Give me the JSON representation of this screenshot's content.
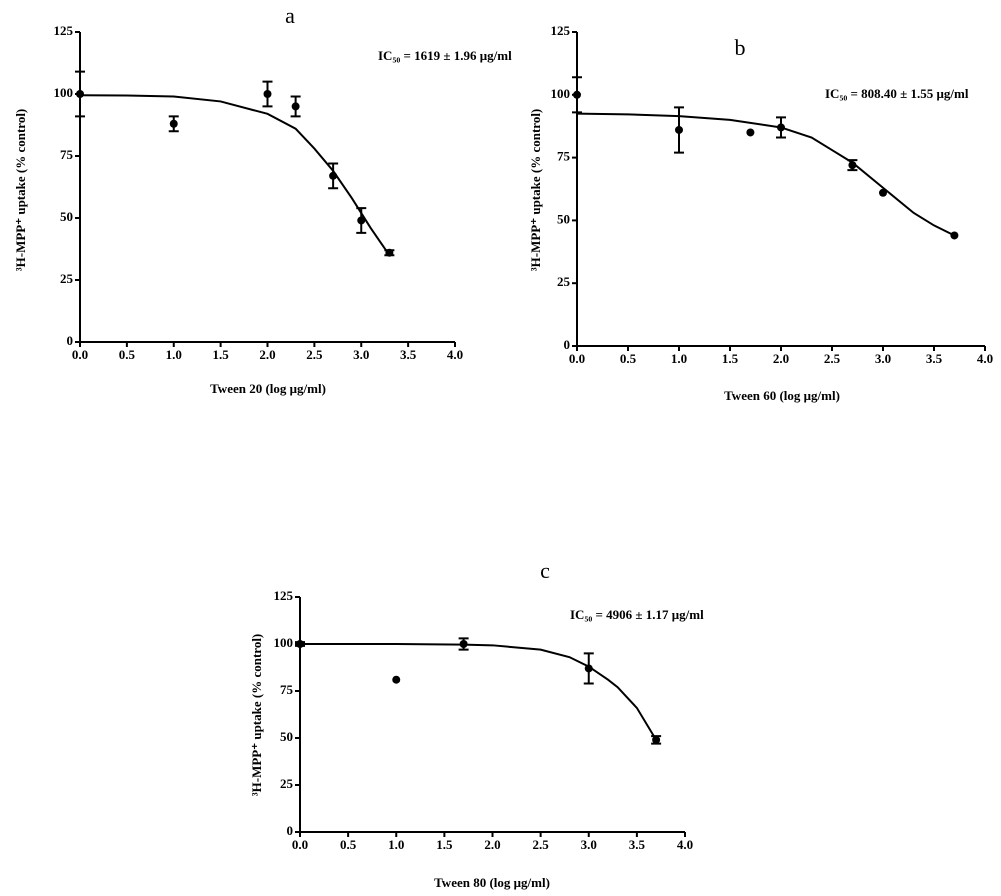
{
  "chart_data": [
    {
      "type": "scatter",
      "label": "a",
      "annotation": "IC₅₀ = 1619 ± 1.96 μg/ml",
      "xlabel": "Tween 20 (log μg/ml)",
      "ylabel": "³H-MPP⁺ uptake (% control)",
      "x": [
        0,
        1,
        2,
        2.3,
        2.7,
        3,
        3.3
      ],
      "values": [
        100,
        88,
        100,
        95,
        67,
        49,
        36
      ],
      "errors": [
        9,
        3,
        5,
        4,
        5,
        5,
        1
      ],
      "fit_x": [
        0,
        0.5,
        1,
        1.5,
        2,
        2.3,
        2.5,
        2.7,
        2.9,
        3,
        3.1,
        3.3
      ],
      "fit_y": [
        99.5,
        99.4,
        99,
        97,
        92,
        86,
        78,
        69,
        58,
        52,
        46,
        35
      ],
      "xlim": [
        0,
        4
      ],
      "ylim": [
        0,
        125
      ],
      "xticks": [
        {
          "value": 0,
          "label": "0.0"
        },
        0.5,
        {
          "value": 1,
          "label": "1.0"
        },
        1.5,
        {
          "value": 2,
          "label": "2.0"
        },
        2.5,
        {
          "value": 3,
          "label": "3.0"
        },
        3.5,
        {
          "value": 4,
          "label": "4.0"
        }
      ],
      "yticks": [
        0,
        25,
        50,
        75,
        100,
        125
      ],
      "color": "#000000"
    },
    {
      "type": "scatter",
      "label": "b",
      "annotation": "IC₅₀ = 808.40 ± 1.55 μg/ml",
      "xlabel": "Tween 60 (log μg/ml)",
      "ylabel": "³H-MPP⁺ uptake (% control)",
      "x": [
        0,
        1,
        1.7,
        2,
        2.7,
        3,
        3.7
      ],
      "values": [
        100,
        86,
        85,
        87,
        72,
        61,
        44
      ],
      "errors": [
        7,
        9,
        0,
        4,
        2,
        0,
        0
      ],
      "fit_x": [
        0,
        0.5,
        1,
        1.5,
        2,
        2.3,
        2.5,
        2.7,
        3,
        3.3,
        3.5,
        3.7
      ],
      "fit_y": [
        92.5,
        92.2,
        91.5,
        90,
        87,
        83,
        78,
        73,
        63,
        53,
        48,
        44
      ],
      "xlim": [
        0,
        4
      ],
      "ylim": [
        0,
        125
      ],
      "xticks": [
        {
          "value": 0,
          "label": "0.0"
        },
        0.5,
        {
          "value": 1,
          "label": "1.0"
        },
        1.5,
        {
          "value": 2,
          "label": "2.0"
        },
        2.5,
        {
          "value": 3,
          "label": "3.0"
        },
        3.5,
        {
          "value": 4,
          "label": "4.0"
        }
      ],
      "yticks": [
        0,
        25,
        50,
        75,
        100,
        125
      ],
      "color": "#000000"
    },
    {
      "type": "scatter",
      "label": "c",
      "annotation": "IC₅₀ = 4906 ± 1.17 μg/ml",
      "xlabel": "Tween 80 (log μg/ml)",
      "ylabel": "³H-MPP⁺ uptake (% control)",
      "x": [
        0,
        1,
        1.7,
        3,
        3.7
      ],
      "values": [
        100,
        81,
        100,
        87,
        49
      ],
      "errors": [
        1,
        0,
        3,
        8,
        2
      ],
      "fit_x": [
        0,
        1,
        1.7,
        2,
        2.5,
        2.8,
        3,
        3.2,
        3.3,
        3.5,
        3.7
      ],
      "fit_y": [
        100,
        100,
        99.7,
        99.3,
        97,
        93,
        88,
        81,
        77,
        66,
        49
      ],
      "xlim": [
        0,
        4
      ],
      "ylim": [
        0,
        125
      ],
      "xticks": [
        {
          "value": 0,
          "label": "0.0"
        },
        0.5,
        {
          "value": 1,
          "label": "1.0"
        },
        1.5,
        {
          "value": 2,
          "label": "2.0"
        },
        2.5,
        {
          "value": 3,
          "label": "3.0"
        },
        3.5,
        {
          "value": 4,
          "label": "4.0"
        }
      ],
      "yticks": [
        0,
        25,
        50,
        75,
        100,
        125
      ],
      "color": "#000000"
    }
  ]
}
